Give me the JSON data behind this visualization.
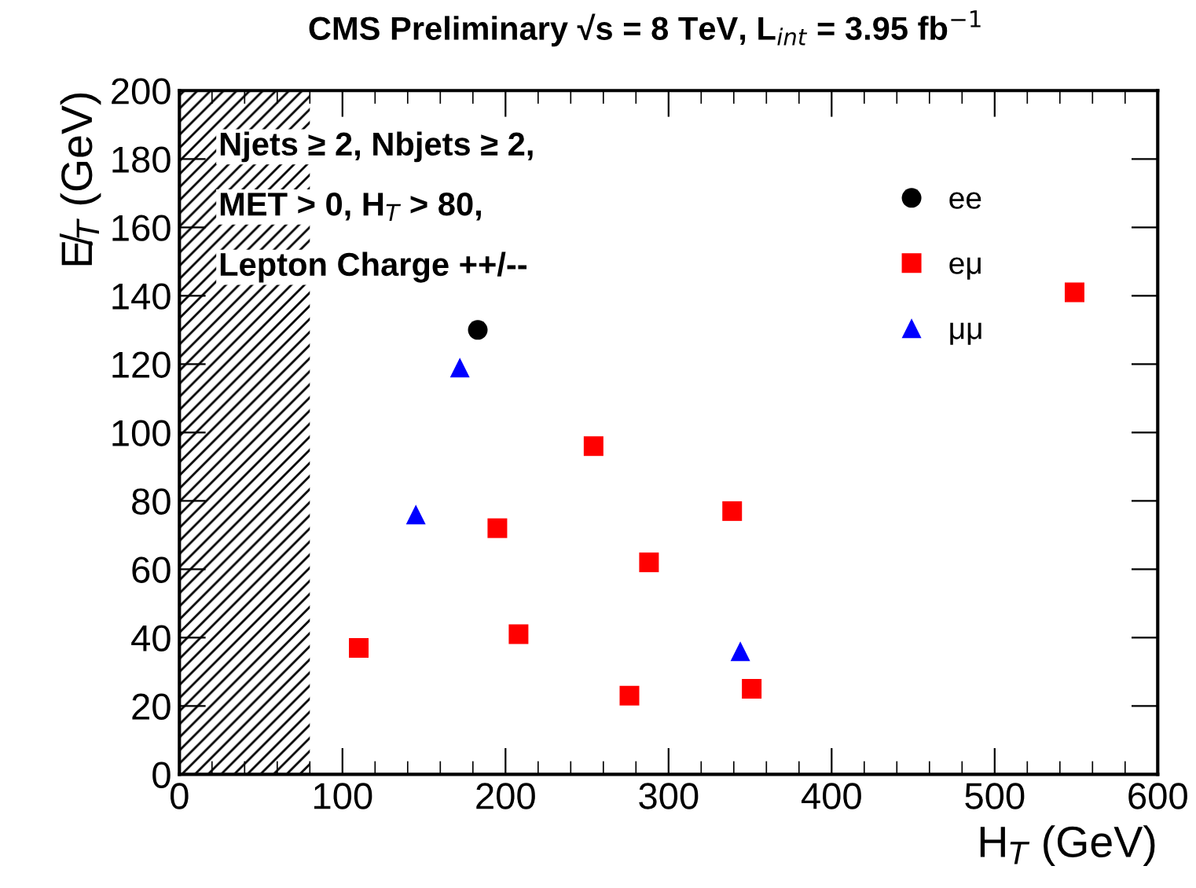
{
  "chart_data": {
    "type": "scatter",
    "title": "CMS Preliminary √s = 8 TeV, L$_{int}$ = 3.95 fb$^{−1}$",
    "xlabel": "H$_{T}$ (GeV)",
    "ylabel": "E̸$_{T}$ (GeV)",
    "xlim": [
      0,
      600
    ],
    "ylim": [
      0,
      200
    ],
    "xticks": [
      0,
      100,
      200,
      300,
      400,
      500,
      600
    ],
    "yticks": [
      0,
      20,
      40,
      60,
      80,
      100,
      120,
      140,
      160,
      180,
      200
    ],
    "grid": false,
    "legend": "top right",
    "annotations": [
      "Njets ≥ 2, Nbjets ≥ 2,",
      "MET > 0, H$_{T}$ > 80,",
      "Lepton Charge ++/--"
    ],
    "bands": [
      {
        "axis": "x",
        "from": 0,
        "to": 80,
        "color": "#000000"
      }
    ],
    "series": [
      {
        "name": "ee",
        "color": "#000000",
        "marker": "circle",
        "x": [
          183
        ],
        "values": [
          130
        ]
      },
      {
        "name": "eμ",
        "color": "#ff0000",
        "marker": "square",
        "x": [
          549,
          254,
          339,
          195,
          288,
          110,
          208,
          276,
          351
        ],
        "values": [
          141,
          96,
          77,
          72,
          62,
          37,
          41,
          23,
          25
        ]
      },
      {
        "name": "μμ",
        "color": "#0000ff",
        "marker": "triangle",
        "x": [
          172,
          145,
          344
        ],
        "values": [
          119,
          76,
          36
        ]
      }
    ]
  }
}
